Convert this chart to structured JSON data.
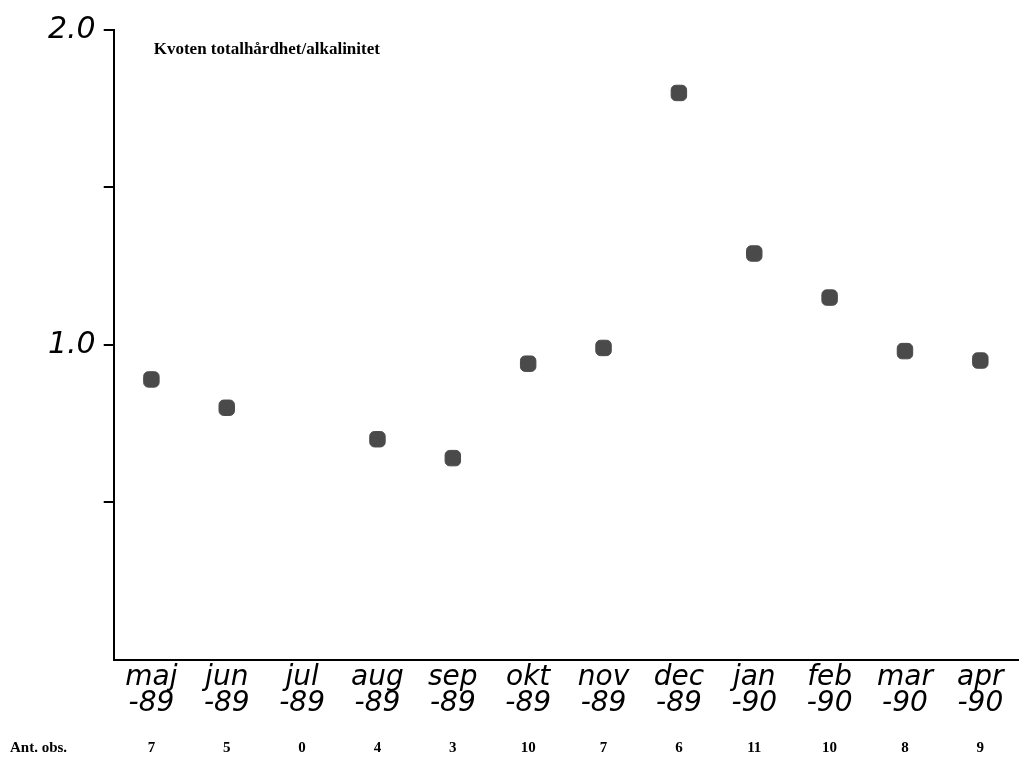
{
  "chart_data": {
    "type": "scatter",
    "ylabel": "Kvoten totalhårdhet/alkalinitet",
    "categories": [
      "maj -89",
      "jun -89",
      "jul -89",
      "aug -89",
      "sep -89",
      "okt -89",
      "nov -89",
      "dec -89",
      "jan -90",
      "feb -90",
      "mar -90",
      "apr -90"
    ],
    "series": [
      {
        "color": "#4a4a4a",
        "values": [
          0.89,
          0.8,
          null,
          0.7,
          0.64,
          0.94,
          0.99,
          1.8,
          1.29,
          1.15,
          0.98,
          0.95
        ]
      }
    ],
    "ylim": [
      0,
      2.0
    ],
    "yticks": [
      {
        "value": 0.5,
        "label": null
      },
      {
        "value": 1.0,
        "label": "1.0"
      },
      {
        "value": 1.5,
        "label": null
      },
      {
        "value": 2.0,
        "label": "2.0"
      }
    ],
    "grid": false,
    "legend": false,
    "marker": "square",
    "annotations": [
      "Ant. obs.",
      "7",
      "5",
      "0",
      "4",
      "3",
      "10",
      "7",
      "6",
      "11",
      "10",
      "8",
      "9"
    ]
  }
}
